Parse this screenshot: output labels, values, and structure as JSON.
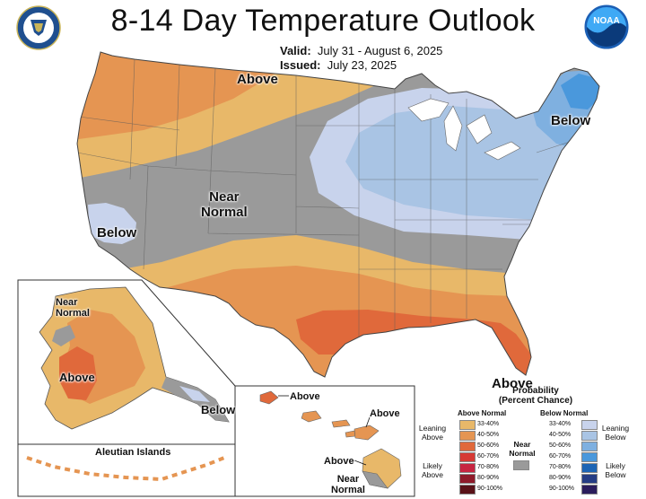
{
  "title": "8-14 Day Temperature Outlook",
  "valid": {
    "label": "Valid:",
    "value": "July 31 - August 6, 2025"
  },
  "issued": {
    "label": "Issued:",
    "value": "July 23, 2025"
  },
  "logos": {
    "left": "department-of-commerce-seal",
    "right": "noaa-logo"
  },
  "map_labels": {
    "above_north": "Above",
    "below_northeast": "Below",
    "near_normal_central": "Near\nNormal",
    "below_california": "Below",
    "above_florida": "Above"
  },
  "alaska": {
    "near_normal": "Near\nNormal",
    "above": "Above",
    "below": "Below",
    "aleutian": "Aleutian Islands"
  },
  "hawaii": {
    "above_kauai": "Above",
    "above_maui": "Above",
    "above_big_island": "Above",
    "near_normal": "Near\nNormal"
  },
  "legend": {
    "title": "Probability\n(Percent Chance)",
    "above_normal_header": "Above Normal",
    "below_normal_header": "Below Normal",
    "near_normal_label": "Near\nNormal",
    "leaning_above": "Leaning\nAbove",
    "likely_above": "Likely\nAbove",
    "leaning_below": "Leaning\nBelow",
    "likely_below": "Likely\nBelow",
    "above_bins": [
      {
        "range": "33-40%",
        "color": "#e8b869"
      },
      {
        "range": "40-50%",
        "color": "#e59552"
      },
      {
        "range": "50-60%",
        "color": "#e0693b"
      },
      {
        "range": "60-70%",
        "color": "#d63a35"
      },
      {
        "range": "70-80%",
        "color": "#c72541"
      },
      {
        "range": "80-90%",
        "color": "#8f1a2a"
      },
      {
        "range": "90-100%",
        "color": "#5a1218"
      }
    ],
    "below_bins": [
      {
        "range": "33-40%",
        "color": "#c8d3ec"
      },
      {
        "range": "40-50%",
        "color": "#a9c4e4"
      },
      {
        "range": "50-60%",
        "color": "#7fb0e0"
      },
      {
        "range": "60-70%",
        "color": "#4a98dc"
      },
      {
        "range": "70-80%",
        "color": "#1d65b5"
      },
      {
        "range": "80-90%",
        "color": "#253d84"
      },
      {
        "range": "90-100%",
        "color": "#2b1d5c"
      }
    ],
    "near_normal_color": "#9a9a9a"
  }
}
